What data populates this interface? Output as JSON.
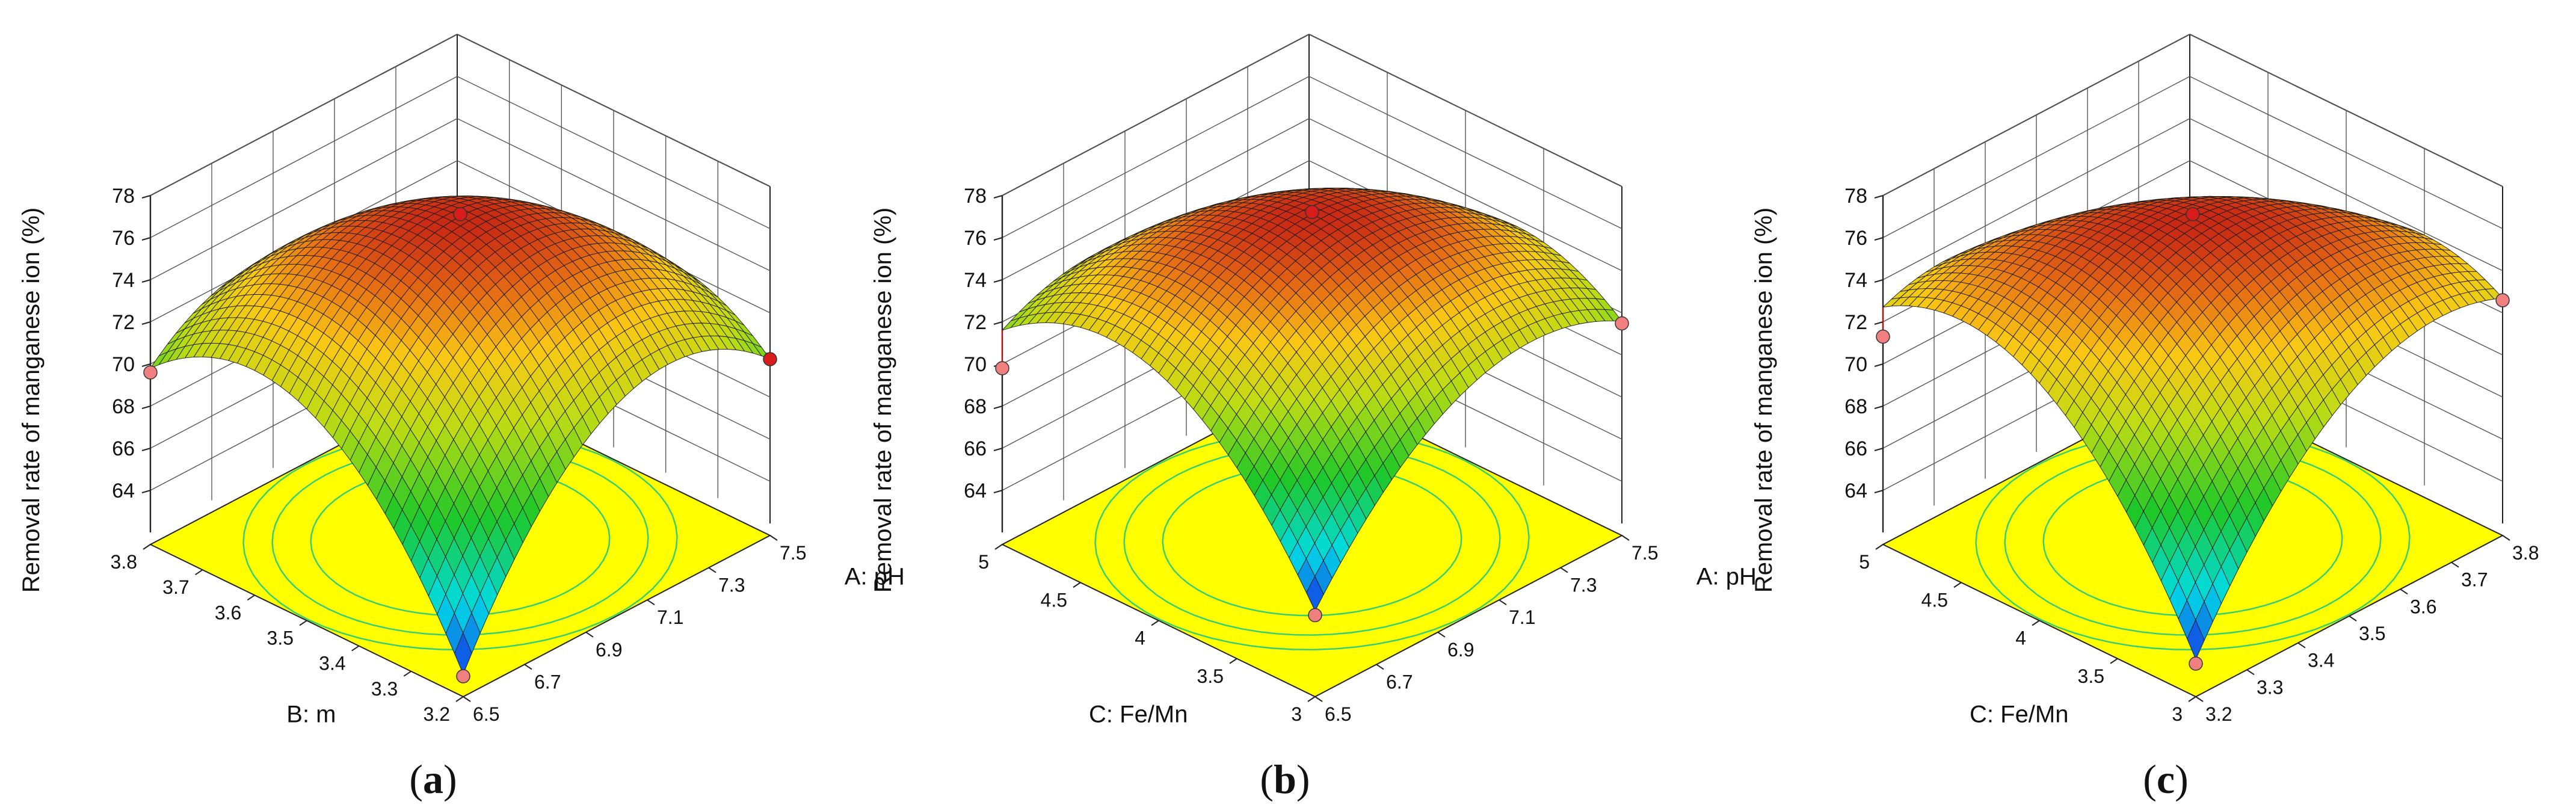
{
  "chart_data": [
    {
      "type": "surface3d",
      "panel_label": "a",
      "zlabel": "Removal rate of manganese ion (%)",
      "xlabel": "A: pH",
      "ylabel": "B: m",
      "x_ticks": [
        "6.5",
        "6.7",
        "6.9",
        "7.1",
        "7.3",
        "7.5"
      ],
      "y_ticks": [
        "3.2",
        "3.3",
        "3.4",
        "3.5",
        "3.6",
        "3.7",
        "3.8"
      ],
      "z_ticks": [
        "64",
        "66",
        "68",
        "70",
        "72",
        "74",
        "76",
        "78"
      ],
      "xlim": [
        6.5,
        7.5
      ],
      "ylim": [
        3.2,
        3.8
      ],
      "zlim": [
        62,
        78
      ],
      "surface": {
        "peak": 76.8,
        "min_corner": 62.5,
        "side_corners": [
          69.8,
          69.8
        ]
      },
      "design_points": [
        {
          "x": 7.0,
          "y": 3.5,
          "z": 76.9
        },
        {
          "x": 6.5,
          "y": 3.8,
          "z": 69.6
        },
        {
          "x": 7.5,
          "y": 3.2,
          "z": 69.8
        },
        {
          "x": 6.5,
          "y": 3.2,
          "z": 62.4
        }
      ],
      "point_colors": {
        "above": "#d81b1b",
        "below": "#f08080"
      },
      "contours": "yes",
      "floor_color": "#ffff00"
    },
    {
      "type": "surface3d",
      "panel_label": "b",
      "zlabel": "Removal rate of manganese ion (%)",
      "xlabel": "A: pH",
      "ylabel": "C: Fe/Mn",
      "x_ticks": [
        "6.5",
        "6.7",
        "6.9",
        "7.1",
        "7.3",
        "7.5"
      ],
      "y_ticks": [
        "3",
        "3.5",
        "4",
        "4.5",
        "5"
      ],
      "z_ticks": [
        "64",
        "66",
        "68",
        "70",
        "72",
        "74",
        "76",
        "78"
      ],
      "xlim": [
        6.5,
        7.5
      ],
      "ylim": [
        3,
        5
      ],
      "zlim": [
        62,
        78
      ],
      "surface": {
        "peak": 76.9,
        "min_corner": 65.5,
        "side_corners": [
          69.8,
          71.6
        ]
      },
      "design_points": [
        {
          "x": 7.0,
          "y": 4.0,
          "z": 77.0
        },
        {
          "x": 6.5,
          "y": 5.0,
          "z": 69.8
        },
        {
          "x": 7.5,
          "y": 3.0,
          "z": 71.5
        },
        {
          "x": 6.5,
          "y": 3.0,
          "z": 65.3
        }
      ],
      "point_colors": {
        "above": "#d81b1b",
        "below": "#f08080"
      },
      "contours": "yes",
      "floor_color": "#ffff00"
    },
    {
      "type": "surface3d",
      "panel_label": "c",
      "zlabel": "Removal rate of manganese ion (%)",
      "xlabel": "B: m",
      "ylabel": "C: Fe/Mn",
      "x_ticks": [
        "3.2",
        "3.3",
        "3.4",
        "3.5",
        "3.6",
        "3.7",
        "3.8"
      ],
      "y_ticks": [
        "3",
        "3.5",
        "4",
        "4.5",
        "5"
      ],
      "z_ticks": [
        "64",
        "66",
        "68",
        "70",
        "72",
        "74",
        "76",
        "78"
      ],
      "xlim": [
        3.2,
        3.8
      ],
      "ylim": [
        3,
        5
      ],
      "zlim": [
        62,
        78
      ],
      "surface": {
        "peak": 76.7,
        "min_corner": 63.2,
        "side_corners": [
          71.2,
          72.7
        ]
      },
      "design_points": [
        {
          "x": 3.5,
          "y": 4.0,
          "z": 76.9
        },
        {
          "x": 3.2,
          "y": 5.0,
          "z": 71.3
        },
        {
          "x": 3.8,
          "y": 3.0,
          "z": 72.6
        },
        {
          "x": 3.2,
          "y": 3.0,
          "z": 63.0
        }
      ],
      "point_colors": {
        "above": "#d81b1b",
        "below": "#f08080"
      },
      "contours": "yes",
      "floor_color": "#ffff00"
    }
  ]
}
